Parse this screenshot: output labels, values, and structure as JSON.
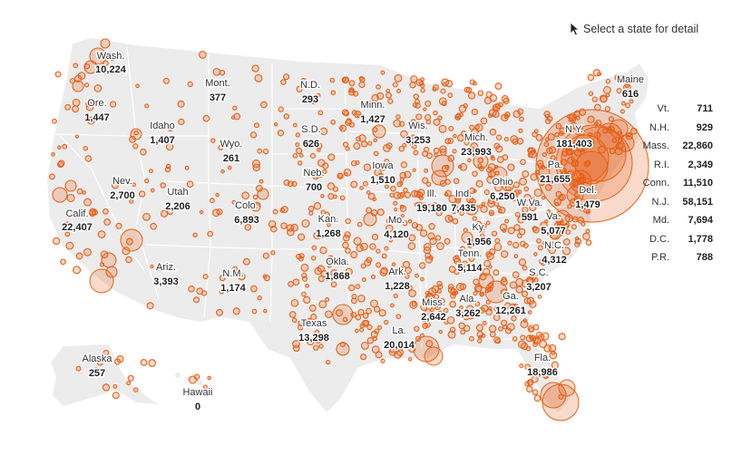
{
  "hint": {
    "text": "Select a state for detail",
    "icon": "cursor-arrow-icon"
  },
  "colors": {
    "land": "#ececec",
    "border": "#ffffff",
    "bubble_fill": "rgba(232,90,20,0.22)",
    "bubble_stroke": "#e8611a"
  },
  "states": {
    "wa": {
      "name": "Wash.",
      "value": "10,224"
    },
    "or": {
      "name": "Ore.",
      "value": "1,447"
    },
    "ca": {
      "name": "Calif.",
      "value": "22,407"
    },
    "id": {
      "name": "Idaho",
      "value": "1,407"
    },
    "nv": {
      "name": "Nev.",
      "value": "2,700"
    },
    "mt": {
      "name": "Mont.",
      "value": "377"
    },
    "wy": {
      "name": "Wyo.",
      "value": "261"
    },
    "ut": {
      "name": "Utah",
      "value": "2,206"
    },
    "co": {
      "name": "Colo.",
      "value": "6,893"
    },
    "az": {
      "name": "Ariz.",
      "value": "3,393"
    },
    "nm": {
      "name": "N.M.",
      "value": "1,174"
    },
    "nd": {
      "name": "N.D.",
      "value": "293"
    },
    "sd": {
      "name": "S.D.",
      "value": "626"
    },
    "ne": {
      "name": "Neb.",
      "value": "700"
    },
    "ks": {
      "name": "Kan.",
      "value": "1,268"
    },
    "ok": {
      "name": "Okla.",
      "value": "1,868"
    },
    "tx": {
      "name": "Texas",
      "value": "13,298"
    },
    "mn": {
      "name": "Minn.",
      "value": "1,427"
    },
    "ia": {
      "name": "Iowa",
      "value": "1,510"
    },
    "mo": {
      "name": "Mo.",
      "value": "4,120"
    },
    "ar": {
      "name": "Ark.",
      "value": "1,228"
    },
    "la": {
      "name": "La.",
      "value": "20,014"
    },
    "wi": {
      "name": "Wis.",
      "value": "3,253"
    },
    "il": {
      "name": "Ill.",
      "value": "19,180"
    },
    "ms": {
      "name": "Miss.",
      "value": "2,642"
    },
    "mi": {
      "name": "Mich.",
      "value": "23,993"
    },
    "in": {
      "name": "Ind.",
      "value": "7,435"
    },
    "ky": {
      "name": "Ky.",
      "value": "1,956"
    },
    "tn": {
      "name": "Tenn.",
      "value": "5,114"
    },
    "al": {
      "name": "Ala.",
      "value": "3,262"
    },
    "ga": {
      "name": "Ga.",
      "value": "12,261"
    },
    "fl": {
      "name": "Fla.",
      "value": "18,986"
    },
    "oh": {
      "name": "Ohio",
      "value": "6,250"
    },
    "wv": {
      "name": "W.Va.",
      "value": "591"
    },
    "va": {
      "name": "Va.",
      "value": "5,077"
    },
    "nc": {
      "name": "N.C.",
      "value": "4,312"
    },
    "sc": {
      "name": "S.C.",
      "value": "3,207"
    },
    "pa": {
      "name": "Pa.",
      "value": "21,655"
    },
    "ny": {
      "name": "N.Y.",
      "value": "181,403"
    },
    "de": {
      "name": "Del.",
      "value": "1,479"
    },
    "me": {
      "name": "Maine",
      "value": "616"
    },
    "ak": {
      "name": "Alaska",
      "value": "257"
    },
    "hi": {
      "name": "Hawaii",
      "value": "0"
    }
  },
  "northeast_table": [
    {
      "abbr": "Vt.",
      "value": "711"
    },
    {
      "abbr": "N.H.",
      "value": "929"
    },
    {
      "abbr": "Mass.",
      "value": "22,860"
    },
    {
      "abbr": "R.I.",
      "value": "2,349"
    },
    {
      "abbr": "Conn.",
      "value": "11,510"
    },
    {
      "abbr": "N.J.",
      "value": "58,151"
    },
    {
      "abbr": "Md.",
      "value": "7,694"
    },
    {
      "abbr": "D.C.",
      "value": "1,778"
    },
    {
      "abbr": "P.R.",
      "value": "788"
    }
  ]
}
